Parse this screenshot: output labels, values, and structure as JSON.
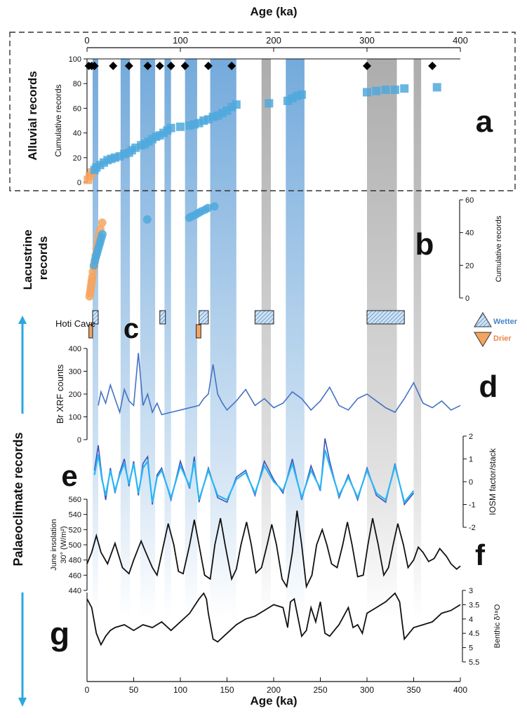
{
  "figure": {
    "top_axis_label": "Age (ka)",
    "bottom_axis_label": "Age (ka)",
    "age_ticks": [
      0,
      50,
      100,
      150,
      200,
      250,
      300,
      350,
      400
    ],
    "top_age_ticks": [
      0,
      100,
      200,
      300,
      400
    ],
    "section_labels": {
      "alluvial": "Alluvial records",
      "lacustrine": "Lacustrine records",
      "palaeoclimate": "Palaeoclimate records"
    },
    "panel_letters": [
      "a",
      "b",
      "c",
      "d",
      "e",
      "f",
      "g"
    ],
    "colors": {
      "wet": "#6fa8dc",
      "wet_band": "#5b9bd5",
      "dry_band": "#9e9e9e",
      "alluvial_marker": "#4fa9dd",
      "lacustrine_dry": "#f4a460",
      "brxrf": "#4472c4",
      "iosm_factor": "#3f51b5",
      "iosm_stack": "#29b6f6",
      "arrow": "#29a8e0"
    }
  },
  "chart_data": [
    {
      "panel": "a",
      "type": "scatter",
      "ylabel": "Cumulative records",
      "ylim": [
        0,
        100
      ],
      "yticks": [
        0,
        20,
        40,
        60,
        80,
        100
      ],
      "series": [
        {
          "x": [
            1,
            3,
            5,
            8,
            10,
            14,
            18,
            22,
            26,
            30,
            35,
            40,
            45,
            48,
            52,
            58,
            62,
            66,
            70,
            74,
            78,
            82,
            86,
            90,
            100,
            110,
            115,
            120,
            125,
            130,
            135,
            140,
            145,
            150,
            155,
            160,
            195,
            215,
            220,
            225,
            230,
            300,
            310,
            320,
            330,
            340,
            375
          ],
          "y": [
            2,
            5,
            8,
            10,
            12,
            14,
            16,
            18,
            19,
            20,
            21,
            23,
            24,
            26,
            28,
            30,
            31,
            33,
            35,
            37,
            38,
            40,
            42,
            44,
            45,
            46,
            47,
            48,
            50,
            51,
            53,
            54,
            56,
            58,
            61,
            63,
            64,
            66,
            68,
            70,
            71,
            73,
            74,
            75,
            75,
            76,
            77
          ]
        }
      ],
      "dated_events": [
        2,
        5,
        8,
        28,
        45,
        65,
        78,
        90,
        105,
        130,
        155,
        300,
        370
      ]
    },
    {
      "panel": "b",
      "type": "scatter",
      "ylabel": "Cumulative records",
      "ylim": [
        0,
        60
      ],
      "yticks": [
        0,
        20,
        40,
        60
      ],
      "series": [
        {
          "x": [
            0.5,
            1,
            1.5,
            2,
            2.5,
            3,
            3.5,
            4,
            5,
            6,
            7,
            8,
            9,
            10,
            12,
            14
          ],
          "y": [
            1,
            3,
            5,
            7,
            9,
            11,
            13,
            16,
            19,
            22,
            26,
            30,
            34,
            38,
            42,
            46
          ]
        },
        {
          "x": [
            3,
            4,
            5,
            6,
            7,
            8,
            9,
            10,
            11,
            12,
            60,
            105,
            108,
            112,
            115,
            118,
            122,
            125,
            132
          ],
          "y": [
            20,
            23,
            25,
            27,
            29,
            31,
            33,
            35,
            37,
            39,
            48,
            49,
            50,
            51,
            52,
            53,
            54,
            55,
            56
          ]
        }
      ]
    },
    {
      "panel": "c",
      "type": "bar",
      "label": "Hoti Cave",
      "legend": [
        "Wetter",
        "Drier"
      ],
      "wetter_intervals": [
        [
          6,
          12
        ],
        [
          78,
          84
        ],
        [
          120,
          130
        ],
        [
          180,
          200
        ],
        [
          300,
          340
        ]
      ],
      "drier_intervals": [
        [
          2,
          6
        ],
        [
          117,
          122
        ]
      ]
    },
    {
      "panel": "d",
      "type": "line",
      "ylabel": "Br XRF counts",
      "ylim": [
        0,
        400
      ],
      "yticks": [
        0,
        100,
        200,
        300,
        400
      ],
      "series": [
        {
          "x": [
            12,
            15,
            20,
            25,
            30,
            35,
            40,
            45,
            50,
            55,
            60,
            65,
            70,
            75,
            80,
            90,
            100,
            110,
            120,
            125,
            130,
            135,
            140,
            145,
            150,
            160,
            170,
            180,
            190,
            200,
            210,
            220,
            230,
            240,
            250,
            260,
            270,
            280,
            290,
            300,
            310,
            320,
            330,
            340,
            350,
            360,
            370,
            380,
            390,
            400
          ],
          "y": [
            150,
            210,
            160,
            240,
            180,
            120,
            220,
            170,
            150,
            380,
            150,
            200,
            120,
            160,
            110,
            120,
            130,
            140,
            150,
            180,
            200,
            330,
            200,
            160,
            130,
            170,
            220,
            150,
            180,
            140,
            160,
            210,
            180,
            130,
            170,
            230,
            150,
            130,
            180,
            200,
            170,
            140,
            120,
            180,
            250,
            160,
            140,
            170,
            130,
            150
          ]
        }
      ]
    },
    {
      "panel": "e",
      "type": "line",
      "ylabel": "IOSM factor/stack",
      "ylim": [
        -2,
        2
      ],
      "yticks": [
        -2,
        -1,
        0,
        1,
        2
      ],
      "series": [
        {
          "x": [
            8,
            12,
            16,
            20,
            25,
            30,
            35,
            40,
            45,
            50,
            55,
            60,
            65,
            70,
            75,
            80,
            90,
            100,
            110,
            115,
            120,
            130,
            140,
            150,
            160,
            170,
            180,
            190,
            200,
            210,
            220,
            230,
            240,
            250,
            255,
            260,
            270,
            280,
            290,
            300,
            310,
            320,
            330,
            340,
            350
          ],
          "y": [
            0.5,
            1.6,
            0.2,
            -0.8,
            0.6,
            -0.5,
            0.4,
            1.0,
            -0.2,
            0.9,
            -0.6,
            0.8,
            1.1,
            -1.0,
            0.3,
            0.6,
            -0.8,
            0.9,
            -0.3,
            1.1,
            -0.9,
            0.6,
            -0.7,
            -0.9,
            0.2,
            0.5,
            -0.6,
            0.9,
            0.1,
            -0.5,
            1.0,
            -0.8,
            0.7,
            -0.4,
            1.9,
            0.9,
            -0.7,
            0.3,
            -0.8,
            0.6,
            -0.6,
            -0.9,
            0.8,
            -1.0,
            -0.5
          ]
        },
        {
          "x": [
            8,
            12,
            16,
            20,
            25,
            30,
            35,
            40,
            45,
            50,
            55,
            60,
            65,
            70,
            75,
            80,
            90,
            100,
            110,
            115,
            120,
            130,
            140,
            150,
            160,
            170,
            180,
            190,
            200,
            210,
            220,
            230,
            240,
            250,
            255,
            260,
            270,
            280,
            290,
            300,
            310,
            320,
            330,
            340,
            350
          ],
          "y": [
            0.3,
            1.2,
            0.1,
            -0.6,
            0.5,
            -0.4,
            0.3,
            0.8,
            -0.1,
            0.8,
            -0.5,
            0.6,
            0.9,
            -0.9,
            0.2,
            0.5,
            -0.7,
            0.7,
            -0.2,
            0.9,
            -0.8,
            0.5,
            -0.6,
            -0.8,
            0.1,
            0.4,
            -0.5,
            0.7,
            0.0,
            -0.4,
            0.8,
            -0.7,
            0.5,
            -0.3,
            1.4,
            0.7,
            -0.6,
            0.2,
            -0.7,
            0.5,
            -0.5,
            -0.8,
            0.7,
            -0.9,
            -0.4
          ]
        }
      ]
    },
    {
      "panel": "f",
      "type": "line",
      "ylabel": "June insolation 30° (W/m²)",
      "ylim": [
        440,
        560
      ],
      "yticks": [
        440,
        460,
        480,
        500,
        520,
        540,
        560
      ],
      "series": [
        {
          "x": [
            0,
            5,
            10,
            15,
            22,
            30,
            38,
            45,
            50,
            58,
            63,
            70,
            75,
            82,
            87,
            93,
            98,
            103,
            110,
            115,
            120,
            126,
            132,
            137,
            143,
            148,
            155,
            160,
            165,
            171,
            176,
            181,
            187,
            193,
            198,
            203,
            209,
            214,
            220,
            225,
            230,
            235,
            241,
            246,
            252,
            257,
            262,
            268,
            274,
            279,
            284,
            290,
            296,
            301,
            306,
            312,
            318,
            323,
            328,
            333,
            339,
            344,
            350,
            355,
            360,
            366,
            372,
            378,
            385,
            390,
            396,
            400
          ],
          "y": [
            475,
            490,
            512,
            490,
            475,
            502,
            470,
            462,
            480,
            505,
            490,
            470,
            460,
            500,
            528,
            500,
            465,
            462,
            500,
            533,
            500,
            460,
            455,
            500,
            535,
            500,
            455,
            468,
            500,
            530,
            500,
            463,
            470,
            500,
            527,
            500,
            455,
            445,
            490,
            545,
            500,
            445,
            460,
            500,
            520,
            500,
            475,
            470,
            500,
            530,
            500,
            458,
            460,
            500,
            535,
            500,
            460,
            470,
            500,
            528,
            500,
            470,
            480,
            497,
            490,
            478,
            482,
            495,
            485,
            475,
            468,
            472
          ]
        }
      ]
    },
    {
      "panel": "g",
      "type": "line",
      "ylabel": "Benthic δ¹⁸O",
      "ylim": [
        3,
        5.5
      ],
      "yticks": [
        3,
        3.5,
        4,
        4.5,
        5,
        5.5
      ],
      "series": [
        {
          "x": [
            0,
            5,
            10,
            15,
            20,
            25,
            30,
            40,
            50,
            60,
            70,
            80,
            90,
            100,
            110,
            120,
            125,
            128,
            130,
            135,
            140,
            150,
            160,
            170,
            180,
            190,
            200,
            210,
            215,
            218,
            222,
            230,
            235,
            240,
            245,
            250,
            255,
            260,
            265,
            270,
            280,
            285,
            290,
            295,
            300,
            310,
            320,
            330,
            335,
            338,
            340,
            345,
            350,
            360,
            370,
            380,
            390,
            400
          ],
          "y": [
            3.3,
            3.6,
            4.5,
            4.9,
            4.6,
            4.4,
            4.3,
            4.2,
            4.4,
            4.2,
            4.3,
            4.1,
            4.4,
            4.1,
            3.8,
            3.3,
            3.1,
            3.3,
            3.8,
            4.7,
            4.8,
            4.5,
            4.2,
            4.0,
            3.9,
            3.7,
            3.5,
            3.6,
            4.3,
            3.4,
            3.3,
            4.6,
            4.4,
            3.6,
            4.1,
            3.4,
            4.5,
            4.6,
            4.4,
            4.2,
            3.6,
            4.3,
            4.2,
            4.5,
            3.8,
            3.6,
            3.4,
            3.1,
            3.4,
            4.2,
            4.7,
            4.5,
            4.3,
            4.2,
            4.1,
            3.8,
            3.7,
            3.5
          ]
        }
      ]
    }
  ],
  "bands": {
    "wet": [
      [
        6,
        12
      ],
      [
        36,
        46
      ],
      [
        57,
        73
      ],
      [
        83,
        90
      ],
      [
        105,
        118
      ],
      [
        132,
        160
      ],
      [
        213,
        233
      ]
    ],
    "dry": [
      [
        187,
        197
      ],
      [
        300,
        332
      ],
      [
        350,
        358
      ]
    ]
  }
}
